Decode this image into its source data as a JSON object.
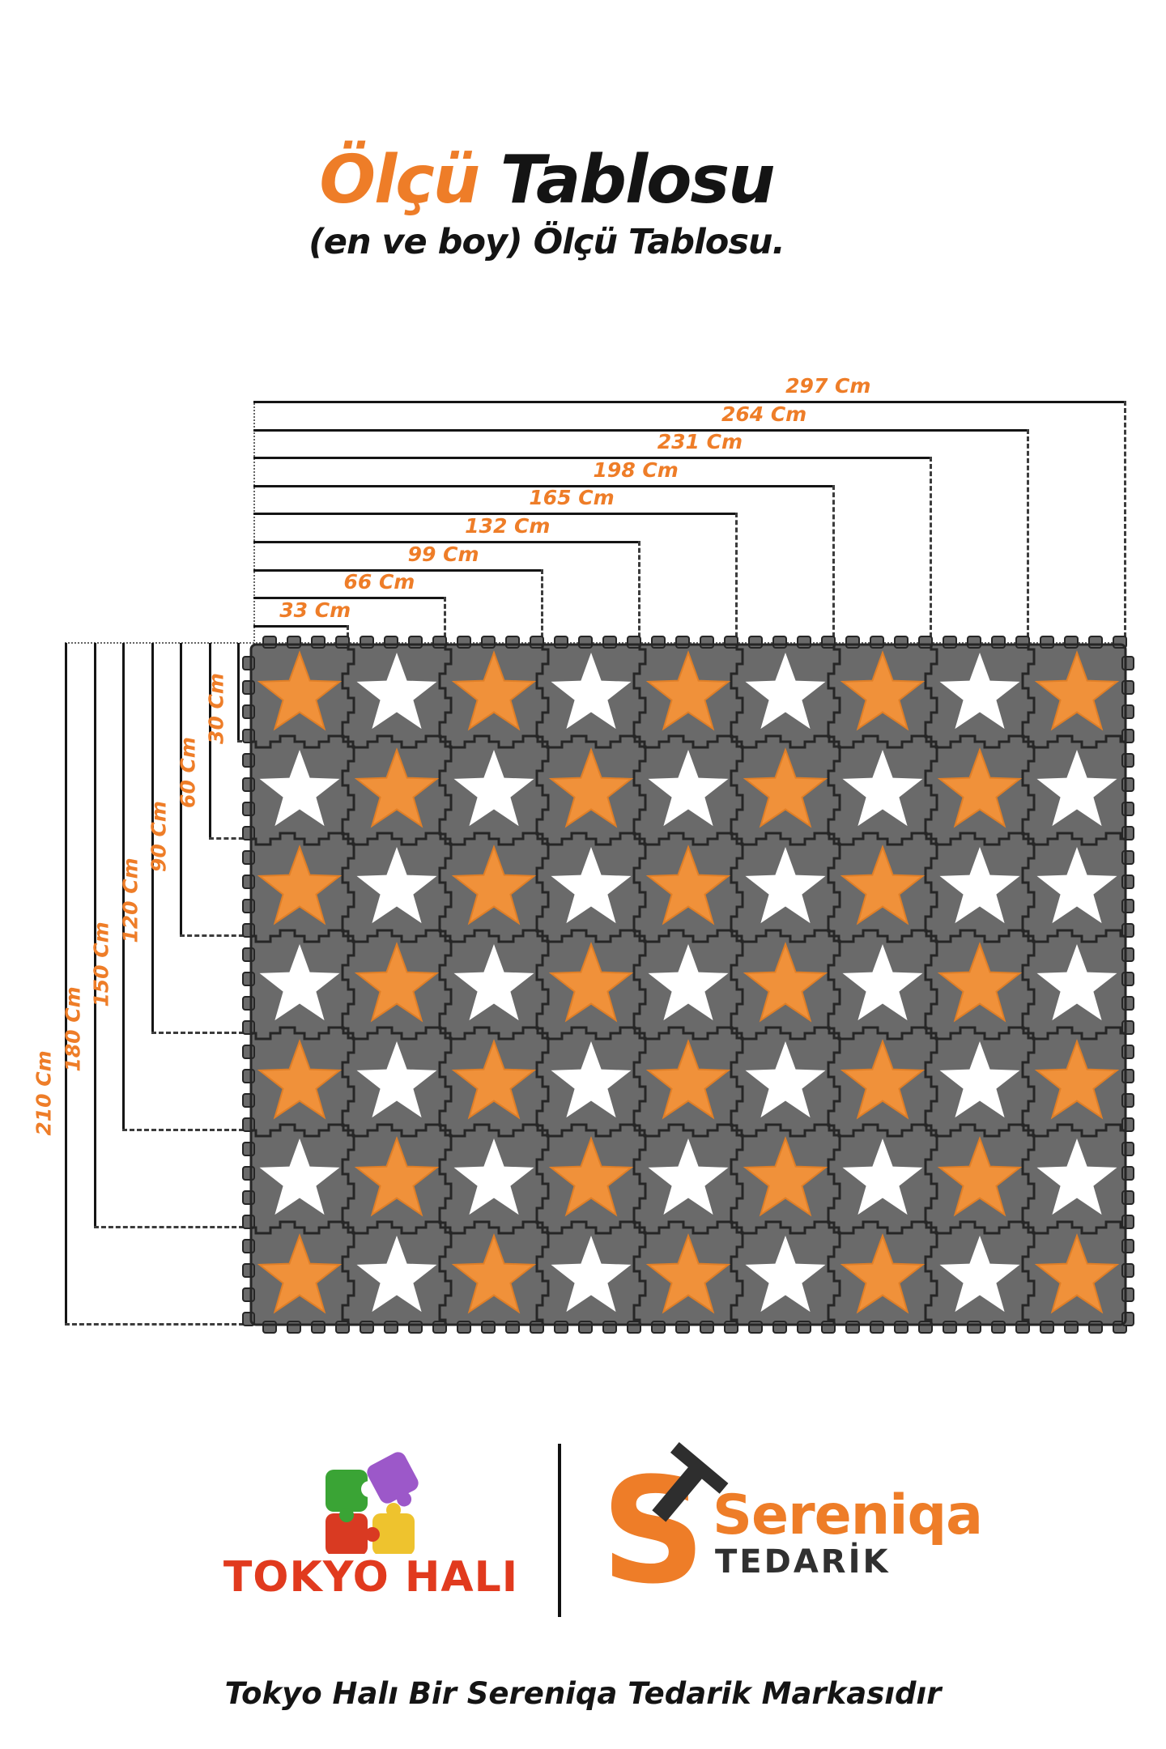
{
  "title": {
    "highlight": "Ölçü",
    "rest": "Tablosu",
    "subtitle": "(en ve boy) Ölçü Tablosu."
  },
  "diagram": {
    "unit": "Cm",
    "width_labels": [
      {
        "label": "297 Cm",
        "tiles": 9
      },
      {
        "label": "264 Cm",
        "tiles": 8
      },
      {
        "label": "231 Cm",
        "tiles": 7
      },
      {
        "label": "198 Cm",
        "tiles": 6
      },
      {
        "label": "165 Cm",
        "tiles": 5
      },
      {
        "label": "132 Cm",
        "tiles": 4
      },
      {
        "label": "99 Cm",
        "tiles": 3
      },
      {
        "label": "66 Cm",
        "tiles": 2
      },
      {
        "label": "33 Cm",
        "tiles": 1
      }
    ],
    "height_labels": [
      {
        "label": "210 Cm",
        "tiles": 7
      },
      {
        "label": "180 Cm",
        "tiles": 6
      },
      {
        "label": "150 Cm",
        "tiles": 5
      },
      {
        "label": "120 Cm",
        "tiles": 4
      },
      {
        "label": "90 Cm",
        "tiles": 3
      },
      {
        "label": "60 Cm",
        "tiles": 2
      },
      {
        "label": "30 Cm",
        "tiles": 1
      }
    ],
    "mat": {
      "columns": 9,
      "rows": 7,
      "star_grid": [
        "OWOWOWOWO",
        "WOWOWOWOW",
        "OWOWOWOWW",
        "WOWOWOWOW",
        "OWOWOWOWO",
        "WOWOWOWOW",
        "OWOWOWOWO"
      ]
    }
  },
  "colors": {
    "accent_orange": "#ee7d28",
    "text_black": "#141414",
    "tile_gray": "#6a6a6a",
    "seam_dark": "#262626",
    "star_orange": "#f0913a",
    "star_orange_edge": "#e07f27",
    "star_white": "#ffffff",
    "tokyo_red": "#e13a1e",
    "puzzle_green": "#3aa435",
    "puzzle_purple": "#9c58c9",
    "puzzle_red": "#d93a22",
    "puzzle_yellow": "#eec32e",
    "tedarik_dark": "#303030"
  },
  "footer": {
    "tokyo_text": "TOKYO HALI",
    "monogram_s": "S",
    "monogram_t": "T",
    "sereniqa_name": "Sereniqa",
    "sereniqa_sub": "TEDARİK",
    "tagline": "Tokyo Halı Bir Sereniqa Tedarik Markasıdır"
  }
}
